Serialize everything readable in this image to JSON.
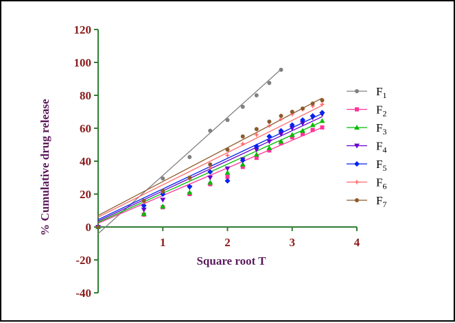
{
  "chart_data": {
    "type": "scatter",
    "xlabel": "Square root T",
    "ylabel": "% Cumulative drug release",
    "xlim": [
      0,
      4
    ],
    "ylim": [
      -40,
      120
    ],
    "x_ticks": [
      "1",
      "2",
      "3",
      "4"
    ],
    "y_ticks": [
      "120",
      "100",
      "80",
      "60",
      "40",
      "20",
      "0",
      "-20",
      "-40"
    ],
    "legend_position": "right",
    "grid": false,
    "series": [
      {
        "name": "F",
        "subscript": "1",
        "color": "#808080",
        "marker": "circle",
        "x": [
          0,
          1.0,
          1.414,
          1.732,
          2.0,
          2.236,
          2.449,
          2.646,
          2.828
        ],
        "y": [
          0,
          29.5,
          42.5,
          58.5,
          65.0,
          73.0,
          80.0,
          87.5,
          95.5
        ],
        "trend": {
          "slope": 35.3,
          "intercept": -4.0,
          "x_range": [
            0,
            2.828
          ]
        }
      },
      {
        "name": "F",
        "subscript": "2",
        "color": "#ff3399",
        "marker": "square",
        "x": [
          0,
          0.707,
          1.0,
          1.414,
          1.732,
          2.0,
          2.236,
          2.449,
          2.646,
          2.828,
          3.0,
          3.162,
          3.317,
          3.464
        ],
        "y": [
          0,
          7.5,
          12.0,
          20.0,
          26.0,
          30.5,
          36.5,
          42.0,
          46.5,
          51.0,
          54.5,
          56.5,
          59.0,
          60.5
        ],
        "trend": {
          "slope": 16.8,
          "intercept": 2.3,
          "x_range": [
            0,
            3.464
          ]
        }
      },
      {
        "name": "F",
        "subscript": "3",
        "color": "#00bb00",
        "marker": "triangle-up",
        "x": [
          0,
          0.707,
          1.0,
          1.414,
          1.732,
          2.0,
          2.236,
          2.449,
          2.646,
          2.828,
          3.0,
          3.162,
          3.317,
          3.464
        ],
        "y": [
          0,
          8.0,
          12.5,
          21.0,
          27.0,
          33.0,
          38.0,
          44.0,
          48.0,
          52.0,
          56.0,
          58.5,
          62.0,
          64.5
        ],
        "trend": {
          "slope": 17.7,
          "intercept": 2.8,
          "x_range": [
            0,
            3.464
          ]
        }
      },
      {
        "name": "F",
        "subscript": "4",
        "color": "#6600cc",
        "marker": "triangle-down",
        "x": [
          0,
          0.707,
          1.0,
          1.414,
          1.732,
          2.0,
          2.236,
          2.449,
          2.646,
          2.828,
          3.0,
          3.162,
          3.317,
          3.464
        ],
        "y": [
          0,
          10.5,
          16.5,
          24.0,
          30.0,
          35.5,
          41.0,
          47.0,
          52.0,
          56.5,
          60.0,
          63.0,
          66.5,
          68.5
        ],
        "trend": {
          "slope": 18.3,
          "intercept": 3.6,
          "x_range": [
            0,
            3.464
          ]
        }
      },
      {
        "name": "F",
        "subscript": "5",
        "color": "#0022ee",
        "marker": "diamond",
        "x": [
          0,
          0.707,
          1.0,
          1.414,
          1.732,
          2.0,
          2.236,
          2.449,
          2.646,
          2.828,
          3.0,
          3.162,
          3.317,
          3.464
        ],
        "y": [
          0,
          13.0,
          20.0,
          24.5,
          33.5,
          28.0,
          40.5,
          49.0,
          55.0,
          58.5,
          62.0,
          65.0,
          67.5,
          69.5
        ],
        "trend": {
          "slope": 18.6,
          "intercept": 4.5,
          "x_range": [
            0,
            3.464
          ]
        }
      },
      {
        "name": "F",
        "subscript": "6",
        "color": "#ff6666",
        "marker": "cross",
        "x": [
          0,
          0.707,
          1.0,
          1.414,
          1.732,
          2.0,
          2.236,
          2.449,
          2.646,
          2.828,
          3.0,
          3.162,
          3.317,
          3.464
        ],
        "y": [
          0,
          15.0,
          21.5,
          29.0,
          36.0,
          43.5,
          50.5,
          56.0,
          61.5,
          65.5,
          68.5,
          71.5,
          73.5,
          74.5
        ],
        "trend": {
          "slope": 19.6,
          "intercept": 6.0,
          "x_range": [
            0,
            3.464
          ]
        }
      },
      {
        "name": "F",
        "subscript": "7",
        "color": "#8b5a2b",
        "marker": "circle",
        "x": [
          0,
          0.707,
          1.0,
          1.414,
          1.732,
          2.0,
          2.236,
          2.449,
          2.646,
          2.828,
          3.0,
          3.162,
          3.317,
          3.464
        ],
        "y": [
          0,
          16.0,
          22.0,
          30.0,
          38.0,
          47.0,
          55.0,
          59.5,
          64.0,
          67.5,
          70.0,
          72.0,
          75.0,
          77.0
        ],
        "trend": {
          "slope": 20.6,
          "intercept": 7.0,
          "x_range": [
            0,
            3.464
          ]
        }
      }
    ]
  }
}
